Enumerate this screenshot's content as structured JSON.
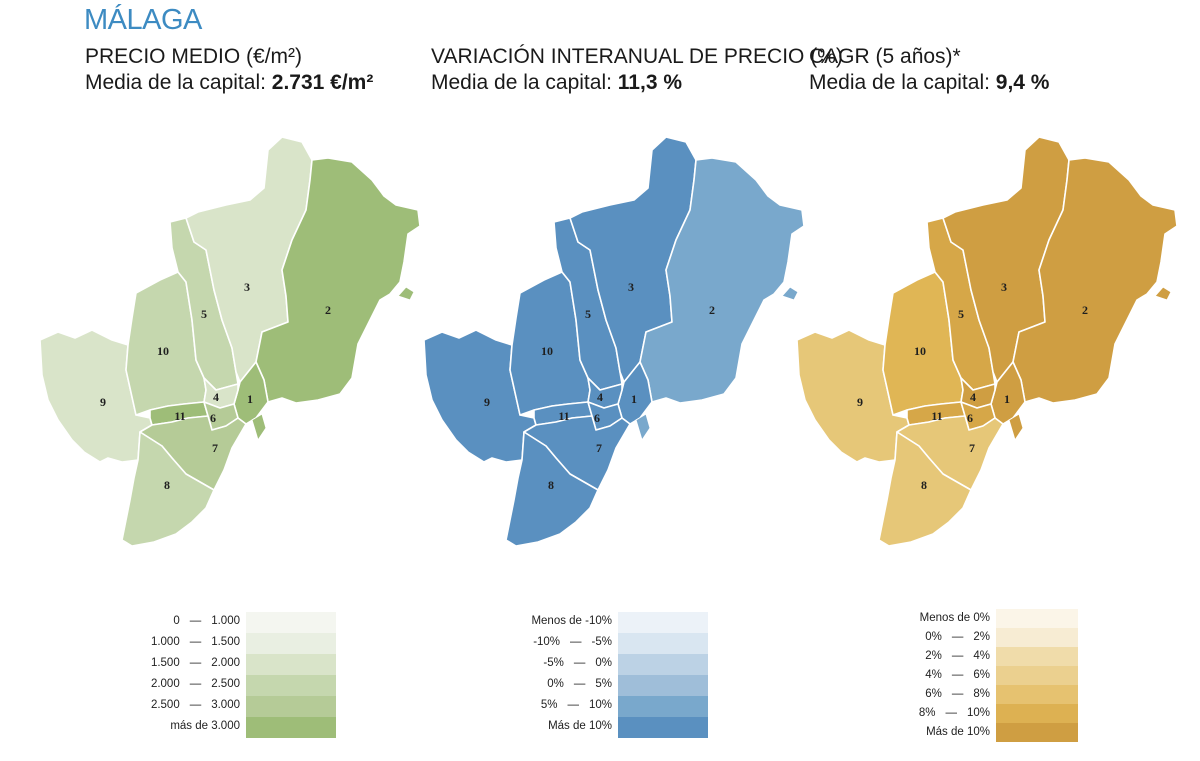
{
  "title": "MÁLAGA",
  "panels": [
    {
      "heading": "PRECIO MEDIO (€/m²)",
      "avg_prefix": "Media de la capital: ",
      "avg_value": "2.731 €/m²",
      "colors": {
        "1": "#9ebd78",
        "2": "#9ebd78",
        "3": "#d9e4c9",
        "4": "#d9e4c9",
        "5": "#c5d7ae",
        "6": "#b5cb97",
        "7": "#b5cb97",
        "8": "#c5d7ae",
        "9": "#d9e4c9",
        "10": "#c5d7ae",
        "11": "#9ebd78"
      },
      "legend": [
        {
          "from": "0",
          "to": "1.000",
          "color": "#f4f6f0"
        },
        {
          "from": "1.000",
          "to": "1.500",
          "color": "#e9efe2"
        },
        {
          "from": "1.500",
          "to": "2.000",
          "color": "#d9e4c9"
        },
        {
          "from": "2.000",
          "to": "2.500",
          "color": "#c5d7ae"
        },
        {
          "from": "2.500",
          "to": "3.000",
          "color": "#b5cb97"
        },
        {
          "label": "más de 3.000",
          "color": "#9ebd78"
        }
      ]
    },
    {
      "heading": "VARIACIÓN INTERANUAL DE PRECIO (%)",
      "avg_prefix": "Media de la capital: ",
      "avg_value": "11,3 %",
      "colors": {
        "1": "#5a90c0",
        "2": "#79a8cc",
        "3": "#5a90c0",
        "4": "#5a90c0",
        "5": "#5a90c0",
        "6": "#5a90c0",
        "7": "#5a90c0",
        "8": "#5a90c0",
        "9": "#5a90c0",
        "10": "#5a90c0",
        "11": "#5a90c0"
      },
      "legend": [
        {
          "label": "Menos de -10%",
          "color": "#ecf2f8"
        },
        {
          "from": "-10%",
          "to": "-5%",
          "color": "#d9e6f1"
        },
        {
          "from": "-5%",
          "to": "0%",
          "color": "#bcd2e5"
        },
        {
          "from": "0%",
          "to": "5%",
          "color": "#9fbed9"
        },
        {
          "from": "5%",
          "to": "10%",
          "color": "#79a8cc"
        },
        {
          "label": "Más de 10%",
          "color": "#5a90c0"
        }
      ]
    },
    {
      "heading": "CAGR (5 años)*",
      "avg_prefix": "Media de la capital: ",
      "avg_value": "9,4 %",
      "colors": {
        "1": "#cf9e42",
        "2": "#cf9e42",
        "3": "#cf9e42",
        "4": "#cf9e42",
        "5": "#d6a748",
        "6": "#d6a748",
        "7": "#e6c778",
        "8": "#e6c778",
        "9": "#e6c778",
        "10": "#e0b655",
        "11": "#d6a748"
      },
      "legend": [
        {
          "label": "Menos de 0%",
          "color": "#fbf5e8"
        },
        {
          "from": "0%",
          "to": "2%",
          "color": "#f7ecd3"
        },
        {
          "from": "2%",
          "to": "4%",
          "color": "#f0dcaa"
        },
        {
          "from": "4%",
          "to": "6%",
          "color": "#ebd08f"
        },
        {
          "from": "6%",
          "to": "8%",
          "color": "#e6c270"
        },
        {
          "from": "8%",
          "to": "10%",
          "color": "#ddb152"
        },
        {
          "label": "Más de 10%",
          "color": "#cf9e42"
        }
      ]
    }
  ],
  "districts": [
    "1",
    "2",
    "3",
    "4",
    "5",
    "6",
    "7",
    "8",
    "9",
    "10",
    "11"
  ]
}
